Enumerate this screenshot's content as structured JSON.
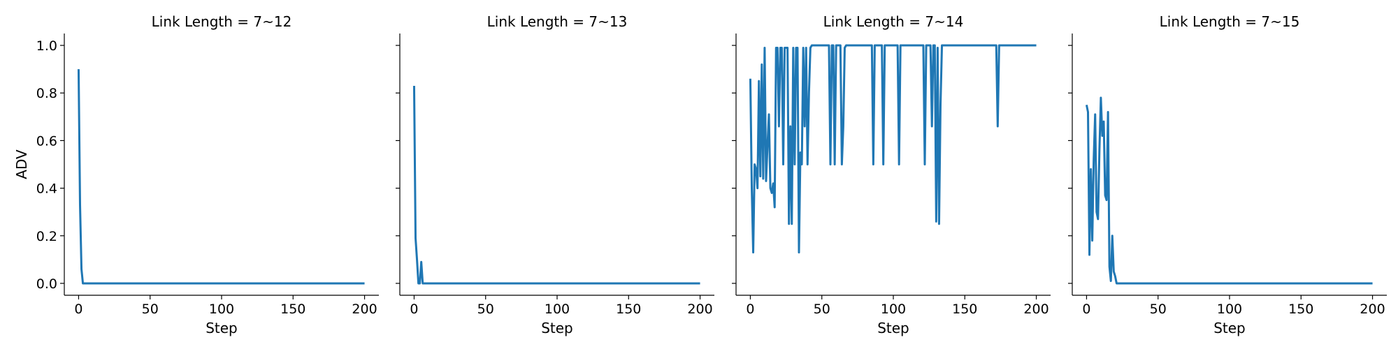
{
  "chart_data": [
    {
      "type": "line",
      "title": "Link Length = 7~12",
      "xlabel": "Step",
      "ylabel": "ADV",
      "xlim": [
        -10,
        210
      ],
      "ylim": [
        -0.05,
        1.05
      ],
      "xticks": [
        0,
        50,
        100,
        150,
        200
      ],
      "yticks": [
        0.0,
        0.2,
        0.4,
        0.6,
        0.8,
        1.0
      ],
      "line_color": "#1f77b4",
      "series": [
        {
          "x": [
            0,
            1,
            2,
            3,
            4,
            200
          ],
          "y": [
            0.9,
            0.33,
            0.06,
            0.0,
            0.0,
            0.0
          ]
        }
      ]
    },
    {
      "type": "line",
      "title": "Link Length = 7~13",
      "xlabel": "Step",
      "ylabel": "",
      "xlim": [
        -10,
        210
      ],
      "ylim": [
        -0.05,
        1.05
      ],
      "xticks": [
        0,
        50,
        100,
        150,
        200
      ],
      "yticks": [
        0.0,
        0.2,
        0.4,
        0.6,
        0.8,
        1.0
      ],
      "line_color": "#1f77b4",
      "series": [
        {
          "x": [
            0,
            1,
            2,
            3,
            4,
            5,
            6,
            7,
            200
          ],
          "y": [
            0.83,
            0.19,
            0.1,
            0.0,
            0.0,
            0.09,
            0.0,
            0.0,
            0.0
          ]
        }
      ]
    },
    {
      "type": "line",
      "title": "Link Length = 7~14",
      "xlabel": "Step",
      "ylabel": "",
      "xlim": [
        -10,
        210
      ],
      "ylim": [
        -0.05,
        1.05
      ],
      "xticks": [
        0,
        50,
        100,
        150,
        200
      ],
      "yticks": [
        0.0,
        0.2,
        0.4,
        0.6,
        0.8,
        1.0
      ],
      "line_color": "#1f77b4",
      "series": [
        {
          "x": [
            0,
            1,
            2,
            3,
            4,
            5,
            6,
            7,
            8,
            9,
            10,
            11,
            12,
            13,
            14,
            15,
            16,
            17,
            18,
            19,
            20,
            21,
            22,
            23,
            24,
            25,
            26,
            27,
            28,
            29,
            30,
            31,
            32,
            33,
            34,
            35,
            36,
            37,
            38,
            39,
            40,
            41,
            42,
            43,
            44,
            45,
            46,
            47,
            48,
            49,
            50,
            55,
            56,
            57,
            58,
            59,
            60,
            61,
            62,
            63,
            64,
            65,
            66,
            67,
            68,
            69,
            70,
            85,
            86,
            87,
            92,
            93,
            94,
            103,
            104,
            105,
            121,
            122,
            123,
            126,
            127,
            128,
            129,
            130,
            131,
            132,
            133,
            134,
            135,
            172,
            173,
            174,
            200
          ],
          "y": [
            0.86,
            0.4,
            0.13,
            0.5,
            0.48,
            0.4,
            0.85,
            0.45,
            0.92,
            0.44,
            0.99,
            0.43,
            0.58,
            0.71,
            0.4,
            0.38,
            0.42,
            0.32,
            0.99,
            0.99,
            0.66,
            0.99,
            0.99,
            0.5,
            0.99,
            0.99,
            0.99,
            0.25,
            0.66,
            0.25,
            0.99,
            0.5,
            0.99,
            0.99,
            0.13,
            0.55,
            0.5,
            0.99,
            0.66,
            0.99,
            0.5,
            0.8,
            0.99,
            1.0,
            1.0,
            1.0,
            1.0,
            1.0,
            1.0,
            1.0,
            1.0,
            1.0,
            0.5,
            1.0,
            1.0,
            0.5,
            1.0,
            1.0,
            1.0,
            1.0,
            0.5,
            0.66,
            0.99,
            1.0,
            1.0,
            1.0,
            1.0,
            1.0,
            0.5,
            1.0,
            1.0,
            0.5,
            1.0,
            1.0,
            0.5,
            1.0,
            1.0,
            0.5,
            1.0,
            1.0,
            0.66,
            1.0,
            1.0,
            0.26,
            0.99,
            0.25,
            0.75,
            1.0,
            1.0,
            1.0,
            0.66,
            1.0,
            1.0
          ]
        }
      ]
    },
    {
      "type": "line",
      "title": "Link Length = 7~15",
      "xlabel": "Step",
      "ylabel": "",
      "xlim": [
        -10,
        210
      ],
      "ylim": [
        -0.05,
        1.05
      ],
      "xticks": [
        0,
        50,
        100,
        150,
        200
      ],
      "yticks": [
        0.0,
        0.2,
        0.4,
        0.6,
        0.8,
        1.0
      ],
      "line_color": "#1f77b4",
      "series": [
        {
          "x": [
            0,
            1,
            2,
            3,
            4,
            5,
            6,
            7,
            8,
            9,
            10,
            11,
            12,
            13,
            14,
            15,
            16,
            17,
            18,
            19,
            20,
            21,
            22,
            23,
            24,
            25,
            26,
            200
          ],
          "y": [
            0.75,
            0.72,
            0.12,
            0.48,
            0.18,
            0.52,
            0.71,
            0.3,
            0.27,
            0.56,
            0.78,
            0.62,
            0.68,
            0.37,
            0.35,
            0.72,
            0.07,
            0.01,
            0.2,
            0.05,
            0.03,
            0.0,
            0.0,
            0.0,
            0.0,
            0.0,
            0.0,
            0.0
          ]
        }
      ]
    }
  ]
}
